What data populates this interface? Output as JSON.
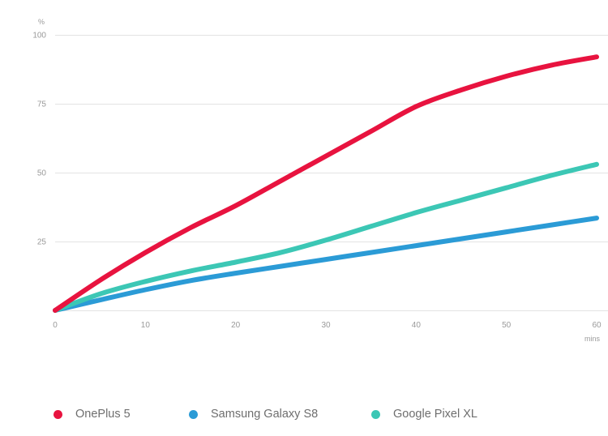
{
  "chart_data": {
    "type": "line",
    "ylabel": "%",
    "xlabel": "mins",
    "xlim": [
      0,
      60
    ],
    "ylim": [
      0,
      100
    ],
    "x_ticks": [
      "0",
      "10",
      "20",
      "30",
      "40",
      "50",
      "60"
    ],
    "y_ticks": [
      "25",
      "50",
      "75",
      "100"
    ],
    "grid": true,
    "legend_position": "bottom-left",
    "x": [
      0,
      5,
      10,
      15,
      20,
      25,
      30,
      35,
      40,
      45,
      50,
      55,
      60
    ],
    "series": [
      {
        "name": "OnePlus 5",
        "color": "#e8133f",
        "values": [
          0,
          11,
          21,
          30,
          38,
          47,
          56,
          65,
          74,
          80,
          85,
          89,
          92
        ]
      },
      {
        "name": "Samsung Galaxy S8",
        "color": "#2b9bd6",
        "values": [
          0,
          3.8,
          7.5,
          10.8,
          13.5,
          16,
          18.5,
          21,
          23.5,
          26,
          28.5,
          31,
          33.5
        ]
      },
      {
        "name": "Google Pixel XL",
        "color": "#3cc7b5",
        "values": [
          0,
          6,
          10.5,
          14.3,
          17.5,
          21,
          25.5,
          30.5,
          35.5,
          40,
          44.5,
          49,
          53
        ]
      }
    ]
  }
}
